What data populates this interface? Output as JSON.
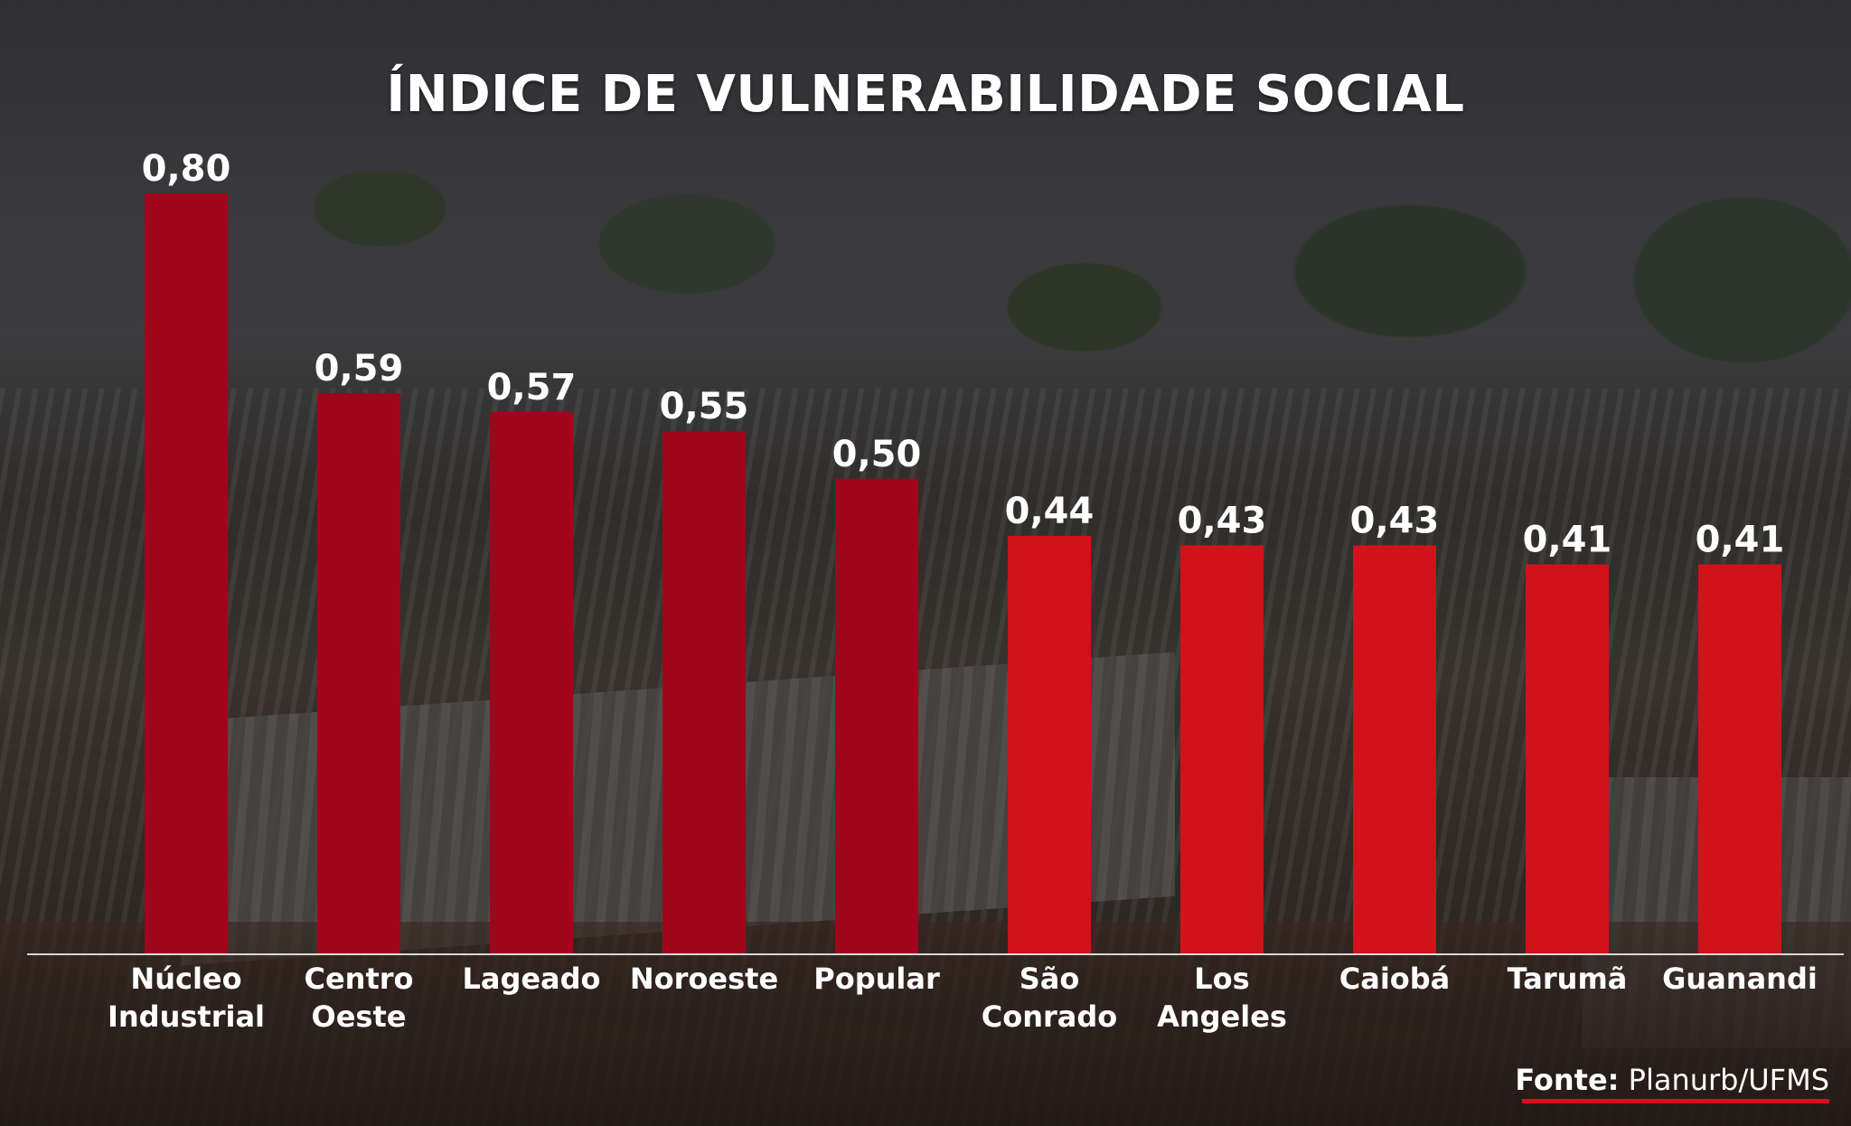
{
  "title": "ÍNDICE DE VULNERABILIDADE SOCIAL",
  "source": {
    "label": "Fonte:",
    "value": "Planurb/UFMS"
  },
  "colors": {
    "dark_bar": "#a0061b",
    "light_bar": "#d0121b",
    "accent": "#d0121b",
    "text": "#ffffff"
  },
  "chart_data": {
    "type": "bar",
    "title": "ÍNDICE DE VULNERABILIDADE SOCIAL",
    "categories": [
      [
        "Núcleo",
        "Industrial"
      ],
      [
        "Centro",
        "Oeste"
      ],
      [
        "Lageado"
      ],
      [
        "Noroeste"
      ],
      [
        "Popular"
      ],
      [
        "São",
        "Conrado"
      ],
      [
        "Los",
        "Angeles"
      ],
      [
        "Caiobá"
      ],
      [
        "Tarumã"
      ],
      [
        "Guanandi"
      ]
    ],
    "values": [
      0.8,
      0.59,
      0.57,
      0.55,
      0.5,
      0.44,
      0.43,
      0.43,
      0.41,
      0.41
    ],
    "value_labels": [
      "0,80",
      "0,59",
      "0,57",
      "0,55",
      "0,50",
      "0,44",
      "0,43",
      "0,43",
      "0,41",
      "0,41"
    ],
    "bar_color_groups": [
      "dark",
      "dark",
      "dark",
      "dark",
      "dark",
      "light",
      "light",
      "light",
      "light",
      "light"
    ],
    "ylim": [
      0,
      0.8
    ],
    "grid": false,
    "legend": "none"
  }
}
